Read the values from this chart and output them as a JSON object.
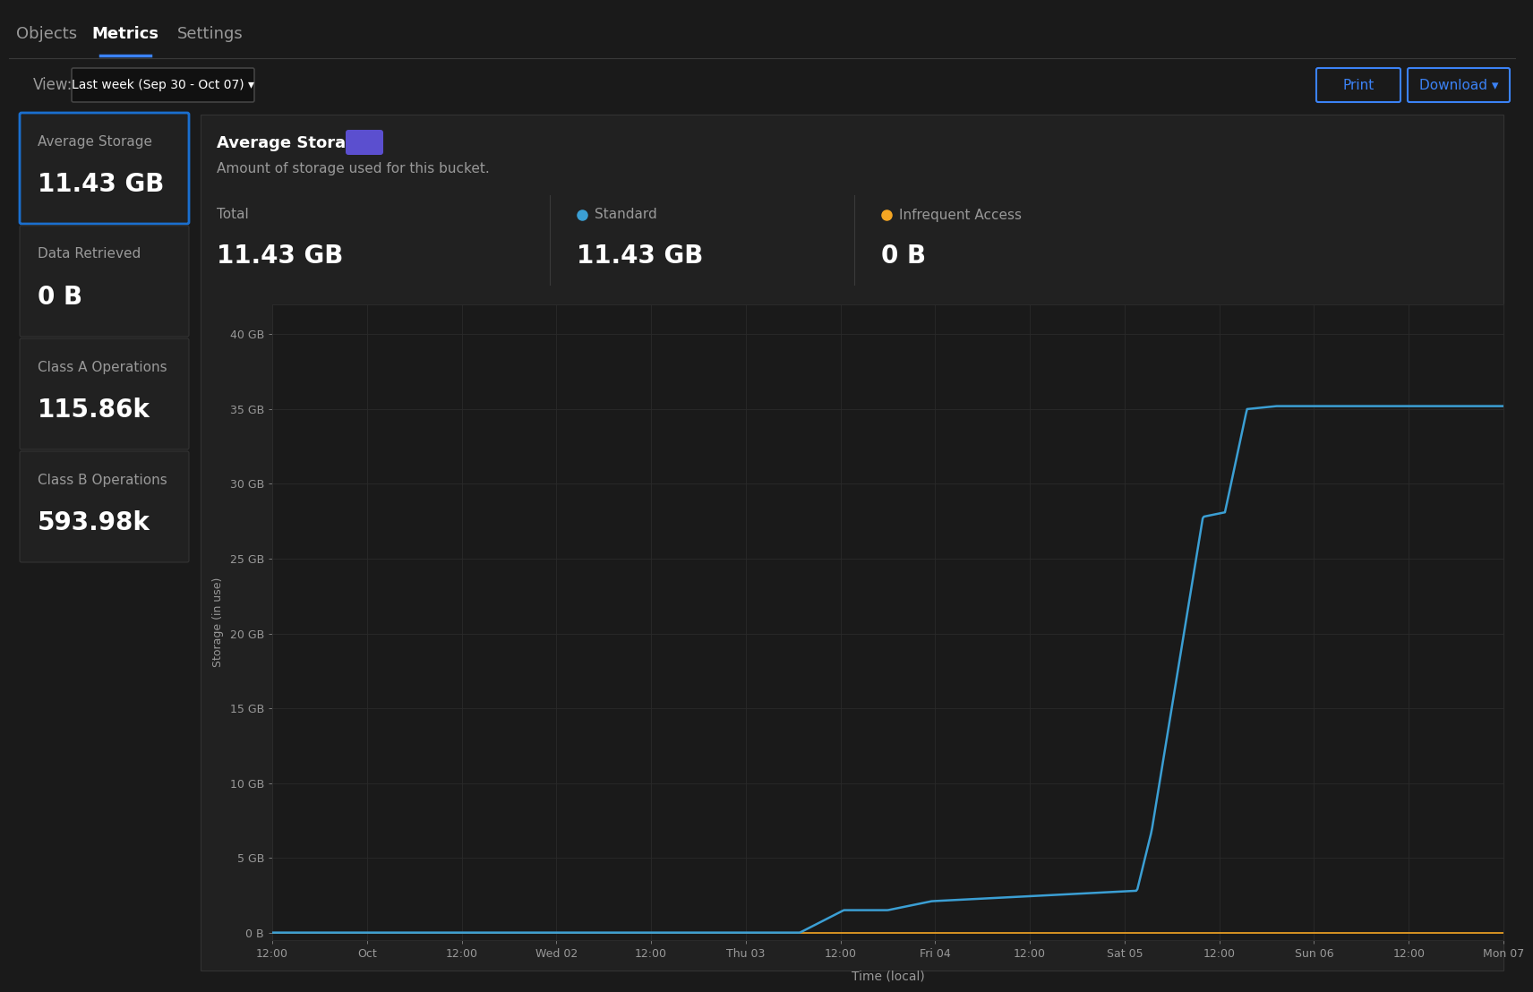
{
  "bg_color": "#1a1a1a",
  "panel_bg": "#212121",
  "panel_border": "#333333",
  "highlight_border": "#1a6fcf",
  "text_color_primary": "#ffffff",
  "text_color_secondary": "#999999",
  "blue_accent": "#3b82f6",
  "orange_accent": "#f5a623",
  "tab_active": "Metrics",
  "tabs": [
    "Objects",
    "Metrics",
    "Settings"
  ],
  "view_label": "View:",
  "view_value": "Last week (Sep 30 - Oct 07) ▾",
  "btn_print": "Print",
  "btn_download": "Download ▾",
  "metrics": [
    {
      "label": "Average Storage",
      "value": "11.43 GB",
      "highlighted": true
    },
    {
      "label": "Data Retrieved",
      "value": "0 B",
      "highlighted": false
    },
    {
      "label": "Class A Operations",
      "value": "115.86k",
      "highlighted": false
    },
    {
      "label": "Class B Operations",
      "value": "593.98k",
      "highlighted": false
    }
  ],
  "chart_title": "Average Storage",
  "chart_subtitle": "Amount of storage used for this bucket.",
  "chart_total_label": "Total",
  "chart_total_value": "11.43 GB",
  "chart_standard_label": "Standard",
  "chart_standard_value": "11.43 GB",
  "chart_infreq_label": "Infrequent Access",
  "chart_infreq_value": "0 B",
  "ylabel": "Storage (in use)",
  "xlabel": "Time (local)",
  "yticks": [
    "0 B",
    "5 GB",
    "10 GB",
    "15 GB",
    "20 GB",
    "25 GB",
    "30 GB",
    "35 GB",
    "40 GB"
  ],
  "ytick_vals": [
    0,
    5,
    10,
    15,
    20,
    25,
    30,
    35,
    40
  ],
  "xtick_labels": [
    "12:00",
    "Oct",
    "12:00",
    "Wed 02",
    "12:00",
    "Thu 03",
    "12:00",
    "Fri 04",
    "12:00",
    "Sat 05",
    "12:00",
    "Sun 06",
    "12:00",
    "Mon 07"
  ],
  "line_color_standard": "#3b9fd4",
  "line_color_infreq": "#f5a623",
  "grid_color": "#2a2a2a",
  "chart_bg": "#1a1a1a"
}
